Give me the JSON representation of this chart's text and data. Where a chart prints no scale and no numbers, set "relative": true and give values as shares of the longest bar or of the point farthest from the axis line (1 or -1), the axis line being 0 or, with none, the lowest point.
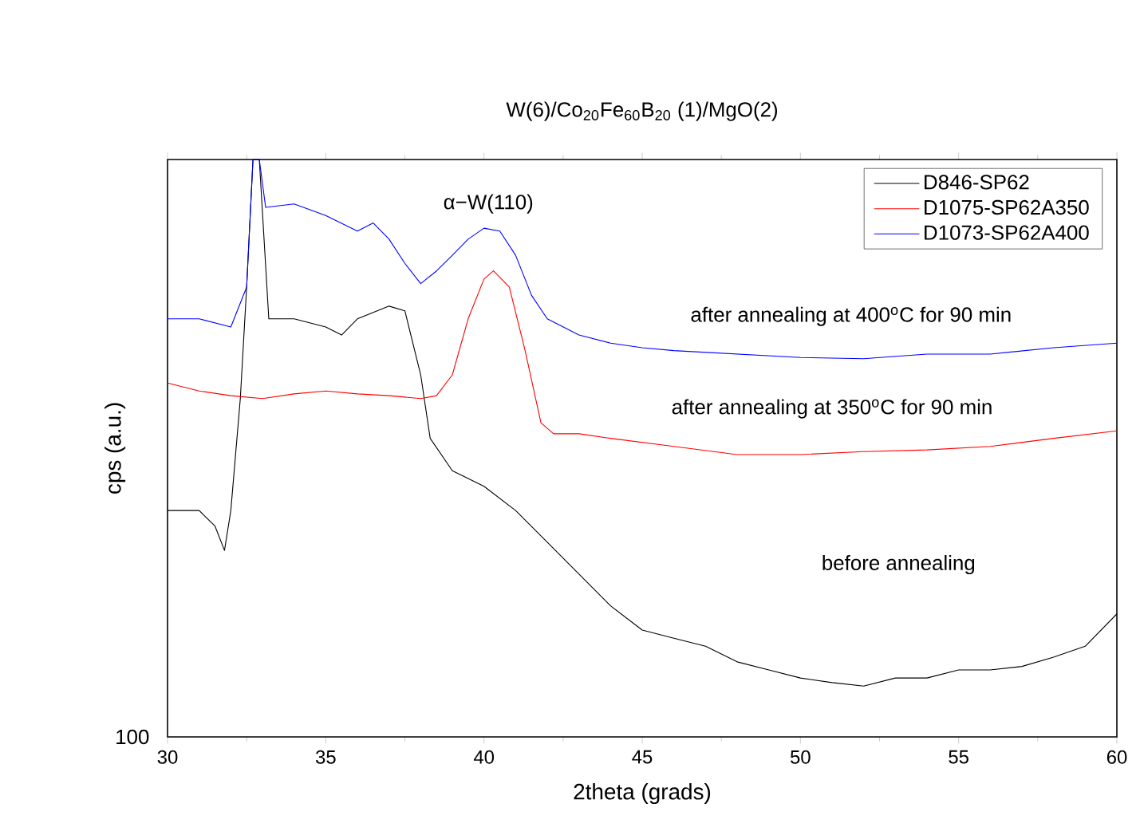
{
  "chart_data": {
    "type": "line",
    "title": "W(6)/Co$_{20}$Fe$_{60}$B$_{20}$ (1)/MgO(2)",
    "xlabel": "2theta (grads)",
    "ylabel": "cps (a.u.)",
    "relative": true,
    "series": [
      {
        "name": "D846-SP62",
        "color": "#000000",
        "x": [
          30,
          31,
          31.5,
          31.8,
          32,
          32.3,
          32.5,
          32.7,
          32.9,
          33.2,
          34,
          35,
          35.5,
          36,
          37,
          37.5,
          38,
          38.3,
          39,
          40,
          41,
          42,
          43,
          44,
          45,
          46,
          47,
          48,
          49,
          50,
          51,
          52,
          53,
          54,
          55,
          56,
          57,
          58,
          59,
          60
        ],
        "values": [
          0.392,
          0.392,
          0.365,
          0.323,
          0.392,
          0.586,
          0.779,
          1,
          1,
          0.724,
          0.724,
          0.71,
          0.696,
          0.724,
          0.746,
          0.738,
          0.627,
          0.517,
          0.461,
          0.434,
          0.392,
          0.337,
          0.282,
          0.227,
          0.185,
          0.171,
          0.157,
          0.13,
          0.116,
          0.102,
          0.094,
          0.088,
          0.102,
          0.102,
          0.116,
          0.116,
          0.122,
          0.138,
          0.157,
          0.213
        ]
      },
      {
        "name": "D1075-SP62A350",
        "color": "#ff0000",
        "x": [
          30,
          31,
          32,
          33,
          34,
          35,
          36,
          37,
          38,
          38.5,
          39,
          39.5,
          40,
          40.3,
          40.8,
          41.3,
          41.8,
          42.2,
          43,
          44,
          46,
          48,
          50,
          52,
          54,
          56,
          58,
          60
        ],
        "values": [
          0.613,
          0.599,
          0.591,
          0.586,
          0.594,
          0.599,
          0.594,
          0.591,
          0.586,
          0.591,
          0.627,
          0.724,
          0.793,
          0.807,
          0.779,
          0.669,
          0.544,
          0.525,
          0.525,
          0.517,
          0.503,
          0.489,
          0.489,
          0.494,
          0.497,
          0.503,
          0.517,
          0.53
        ]
      },
      {
        "name": "D1073-SP62A400",
        "color": "#0000ff",
        "x": [
          30,
          31,
          32,
          32.5,
          32.7,
          32.9,
          33.1,
          34,
          35,
          36,
          36.5,
          37,
          37.5,
          38,
          38.5,
          39,
          39.5,
          40,
          40.5,
          41,
          41.5,
          42,
          43,
          44,
          45,
          46,
          48,
          50,
          52,
          54,
          56,
          58,
          60
        ],
        "values": [
          0.724,
          0.724,
          0.71,
          0.779,
          1,
          1,
          0.917,
          0.923,
          0.903,
          0.876,
          0.89,
          0.862,
          0.82,
          0.785,
          0.807,
          0.834,
          0.862,
          0.881,
          0.876,
          0.834,
          0.765,
          0.724,
          0.696,
          0.682,
          0.674,
          0.669,
          0.663,
          0.657,
          0.655,
          0.663,
          0.663,
          0.674,
          0.682
        ]
      }
    ],
    "xlim": [
      30,
      60
    ],
    "xticks": [
      30,
      35,
      40,
      45,
      50,
      55,
      60
    ],
    "legend": "top right",
    "annotations": [
      "α−W(110)",
      "after annealing at 400$^{o}$C for 90 min",
      "after annealing at 350$^{o}$C for 90 min",
      "before annealing",
      "100"
    ]
  }
}
